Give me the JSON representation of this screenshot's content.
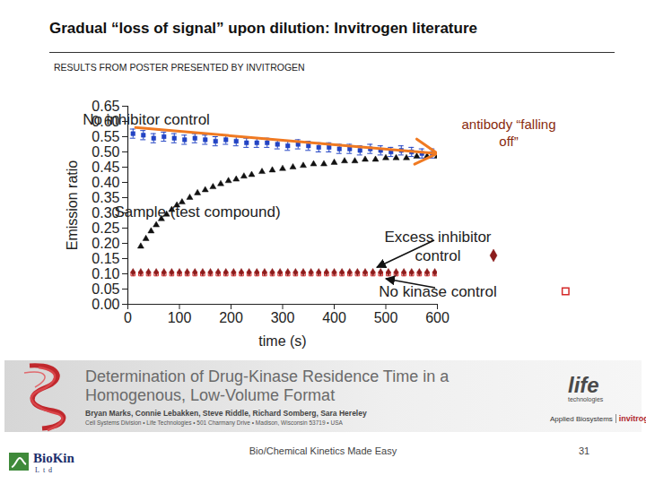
{
  "slide": {
    "title": "Gradual “loss of signal” upon dilution: Invitrogen literature",
    "subtitle": "RESULTS FROM POSTER PRESENTED BY INVITROGEN",
    "footer": "Bio/Chemical Kinetics Made Easy",
    "page_number": "31",
    "logo": "BioKin Ltd"
  },
  "banner": {
    "title": "Determination of Drug-Kinase Residence Time in a Homogenous, Low-Volume Format",
    "authors": "Bryan Marks, Connie Lebakken, Steve Riddle, Richard Somberg, Sara Hereley",
    "affiliation": "Cell Systems Division • Life Technologies • 501 Charmany Drive • Madison, Wisconsin 53719 • USA",
    "brand": "life technologies",
    "brands": [
      "Applied Biosystems",
      "invitrogen"
    ]
  },
  "chart_data": {
    "type": "scatter",
    "x_label": "time (s)",
    "y_label": "Emission ratio",
    "xlim": [
      0,
      600
    ],
    "xticks": [
      0,
      100,
      200,
      300,
      400,
      500,
      600
    ],
    "ylim": [
      0,
      0.65
    ],
    "yticks": [
      {
        "value": 0,
        "label": "0.00"
      },
      {
        "value": 0.05,
        "label": "0.05"
      },
      {
        "value": 0.1,
        "label": "0.10"
      },
      {
        "value": 0.15,
        "label": "0.15"
      },
      {
        "value": 0.2,
        "label": "0.20"
      },
      {
        "value": 0.25,
        "label": "0.25"
      },
      {
        "value": 0.3,
        "label": "0.30"
      },
      {
        "value": 0.35,
        "label": "0.35"
      },
      {
        "value": 0.4,
        "label": "0.40"
      },
      {
        "value": 0.45,
        "label": "0.45"
      },
      {
        "value": 0.5,
        "label": "0.50"
      },
      {
        "value": 0.55,
        "label": "0.55"
      },
      {
        "value": 0.6,
        "label": "0.60"
      },
      {
        "value": 0.65,
        "label": "0.65"
      }
    ],
    "grid": false,
    "series": [
      {
        "name": "No inhibitor control",
        "color": "#2344c4",
        "marker": "square",
        "x": [
          10,
          30,
          50,
          70,
          90,
          110,
          130,
          150,
          170,
          190,
          210,
          230,
          250,
          270,
          290,
          310,
          330,
          350,
          370,
          390,
          410,
          430,
          450,
          470,
          490,
          510,
          530,
          550,
          570,
          590
        ],
        "values": [
          0.56,
          0.555,
          0.545,
          0.55,
          0.545,
          0.54,
          0.545,
          0.54,
          0.535,
          0.54,
          0.535,
          0.53,
          0.53,
          0.53,
          0.525,
          0.52,
          0.525,
          0.52,
          0.515,
          0.515,
          0.51,
          0.51,
          0.505,
          0.51,
          0.505,
          0.5,
          0.505,
          0.5,
          0.495,
          0.495
        ],
        "errors": [
          0.015,
          0.015,
          0.015,
          0.015,
          0.015,
          0.015,
          0.015,
          0.015,
          0.015,
          0.015,
          0.015,
          0.015,
          0.015,
          0.015,
          0.015,
          0.015,
          0.015,
          0.015,
          0.015,
          0.015,
          0.015,
          0.015,
          0.015,
          0.015,
          0.015,
          0.015,
          0.015,
          0.015,
          0.015,
          0.015
        ]
      },
      {
        "name": "Sample (test compound)",
        "color": "#111111",
        "marker": "triangle",
        "x": [
          25,
          35,
          45,
          55,
          65,
          75,
          85,
          95,
          105,
          120,
          135,
          150,
          165,
          180,
          195,
          210,
          225,
          240,
          260,
          280,
          300,
          320,
          340,
          360,
          380,
          400,
          420,
          440,
          460,
          480,
          500,
          520,
          540,
          560,
          580,
          600
        ],
        "values": [
          0.19,
          0.215,
          0.24,
          0.26,
          0.28,
          0.295,
          0.31,
          0.325,
          0.335,
          0.35,
          0.365,
          0.375,
          0.385,
          0.395,
          0.405,
          0.41,
          0.42,
          0.425,
          0.435,
          0.44,
          0.445,
          0.45,
          0.455,
          0.46,
          0.46,
          0.465,
          0.47,
          0.47,
          0.475,
          0.475,
          0.48,
          0.48,
          0.48,
          0.485,
          0.485,
          0.485
        ]
      },
      {
        "name": "Excess inhibitor control",
        "color": "#8b1c1c",
        "marker": "diamond",
        "x": [
          10,
          25,
          40,
          55,
          70,
          85,
          100,
          115,
          130,
          145,
          160,
          175,
          190,
          205,
          220,
          235,
          250,
          265,
          280,
          295,
          310,
          325,
          340,
          355,
          370,
          385,
          400,
          415,
          430,
          445,
          460,
          475,
          490,
          505,
          520,
          535,
          550,
          565,
          580,
          595
        ],
        "values": [
          0.105,
          0.105,
          0.105,
          0.105,
          0.105,
          0.105,
          0.105,
          0.105,
          0.105,
          0.105,
          0.105,
          0.105,
          0.105,
          0.105,
          0.105,
          0.105,
          0.105,
          0.105,
          0.105,
          0.105,
          0.105,
          0.105,
          0.105,
          0.105,
          0.105,
          0.105,
          0.105,
          0.105,
          0.105,
          0.105,
          0.105,
          0.105,
          0.105,
          0.105,
          0.105,
          0.105,
          0.105,
          0.105,
          0.105,
          0.105
        ]
      },
      {
        "name": "No kinase control",
        "color": "#d42a2a",
        "marker": "open_square",
        "x": [
          10,
          25,
          40,
          55,
          70,
          85,
          100,
          115,
          130,
          145,
          160,
          175,
          190,
          205,
          220,
          235,
          250,
          265,
          280,
          295,
          310,
          325,
          340,
          355,
          370,
          385,
          400,
          415,
          430,
          445,
          460,
          475,
          490,
          505,
          520,
          535,
          550,
          565,
          580,
          595
        ],
        "values": [
          0.1,
          0.1,
          0.1,
          0.1,
          0.1,
          0.1,
          0.1,
          0.1,
          0.1,
          0.1,
          0.1,
          0.1,
          0.1,
          0.1,
          0.1,
          0.1,
          0.1,
          0.1,
          0.1,
          0.1,
          0.1,
          0.1,
          0.1,
          0.1,
          0.1,
          0.1,
          0.1,
          0.1,
          0.1,
          0.1,
          0.1,
          0.1,
          0.1,
          0.1,
          0.1,
          0.1,
          0.1,
          0.1,
          0.1,
          0.1
        ]
      }
    ],
    "annotation": {
      "text": "antibody “falling off”",
      "color": "#f07a22",
      "x1": 15,
      "y1": 0.58,
      "x2": 600,
      "y2": 0.495
    }
  }
}
